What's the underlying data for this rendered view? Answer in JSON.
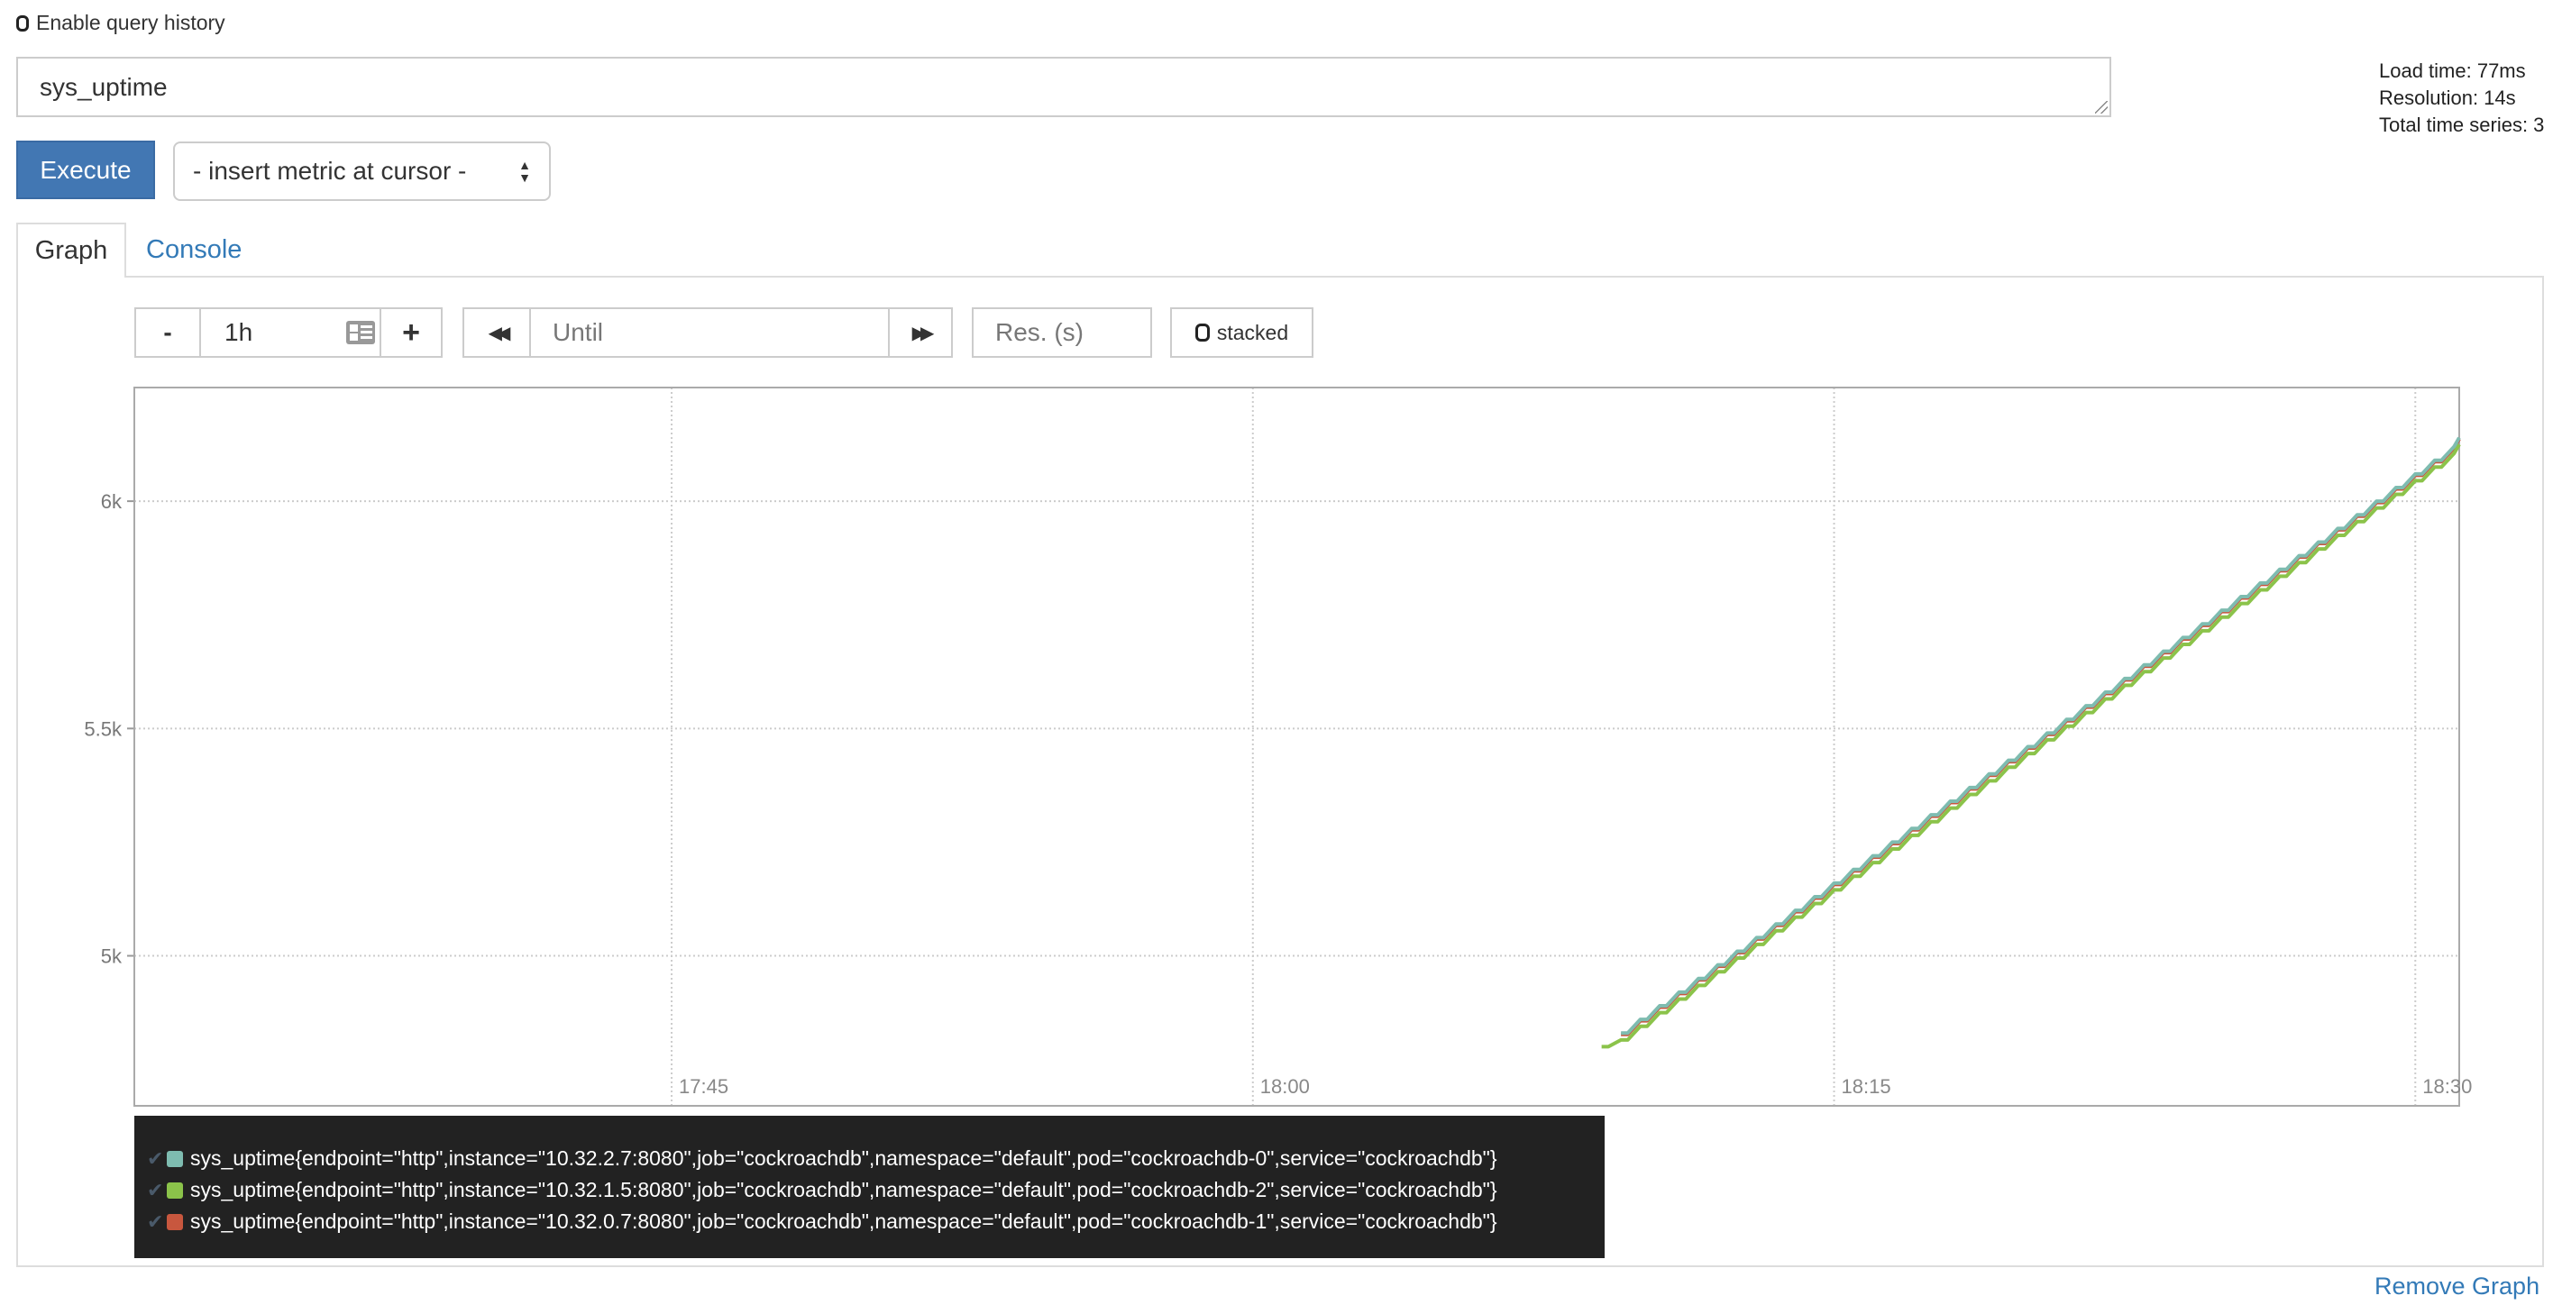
{
  "query_history": {
    "label": "Enable query history",
    "checked": false
  },
  "query": {
    "value": "sys_uptime"
  },
  "execute_label": "Execute",
  "metric_select": {
    "selected": "- insert metric at cursor -"
  },
  "stats": {
    "load_time": "Load time: 77ms",
    "resolution": "Resolution: 14s",
    "total_series": "Total time series: 3"
  },
  "tabs": [
    {
      "label": "Graph",
      "active": true
    },
    {
      "label": "Console",
      "active": false
    }
  ],
  "controls": {
    "range_minus": "-",
    "range_value": "1h",
    "range_plus": "+",
    "until_placeholder": "Until",
    "res_placeholder": "Res. (s)",
    "stacked_label": "stacked",
    "stacked": false
  },
  "legend": [
    {
      "label": "sys_uptime{endpoint=\"http\",instance=\"10.32.2.7:8080\",job=\"cockroachdb\",namespace=\"default\",pod=\"cockroachdb-0\",service=\"cockroachdb\"}",
      "color": "#7ebcb0"
    },
    {
      "label": "sys_uptime{endpoint=\"http\",instance=\"10.32.1.5:8080\",job=\"cockroachdb\",namespace=\"default\",pod=\"cockroachdb-2\",service=\"cockroachdb\"}",
      "color": "#8bc34a"
    },
    {
      "label": "sys_uptime{endpoint=\"http\",instance=\"10.32.0.7:8080\",job=\"cockroachdb\",namespace=\"default\",pod=\"cockroachdb-1\",service=\"cockroachdb\"}",
      "color": "#c8573e"
    }
  ],
  "remove_graph": "Remove Graph",
  "chart_data": {
    "type": "line",
    "xlim": [
      "17:31",
      "18:31"
    ],
    "ylim": [
      4670,
      6250
    ],
    "grid": true,
    "x_ticks": [
      "17:45",
      "18:00",
      "18:15",
      "18:30"
    ],
    "y_ticks": [
      {
        "value": 5000,
        "label": "5k"
      },
      {
        "value": 5500,
        "label": "5.5k"
      },
      {
        "value": 6000,
        "label": "6k"
      }
    ],
    "legend_position": "bottom",
    "x": [
      "18:09:00",
      "18:09:30",
      "18:10:00",
      "18:10:30",
      "18:11:00",
      "18:11:30",
      "18:12:00",
      "18:12:30",
      "18:13:00",
      "18:13:30",
      "18:14:00",
      "18:14:30",
      "18:15:00",
      "18:15:30",
      "18:16:00",
      "18:16:30",
      "18:17:00",
      "18:17:30",
      "18:18:00",
      "18:18:30",
      "18:19:00",
      "18:19:30",
      "18:20:00",
      "18:20:30",
      "18:21:00",
      "18:21:30",
      "18:22:00",
      "18:22:30",
      "18:23:00",
      "18:23:30",
      "18:24:00",
      "18:24:30",
      "18:25:00",
      "18:25:30",
      "18:26:00",
      "18:26:30",
      "18:27:00",
      "18:27:30",
      "18:28:00",
      "18:28:30",
      "18:29:00",
      "18:29:30",
      "18:30:00",
      "18:30:30",
      "18:31:00"
    ],
    "series": [
      {
        "color": "#c8573e",
        "values": [
          null,
          4827,
          4857,
          4887,
          4917,
          4947,
          4977,
          5007,
          5037,
          5067,
          5097,
          5127,
          5157,
          5187,
          5217,
          5247,
          5277,
          5307,
          5337,
          5367,
          5397,
          5427,
          5457,
          5487,
          5517,
          5547,
          5577,
          5607,
          5637,
          5667,
          5697,
          5727,
          5757,
          5787,
          5817,
          5847,
          5877,
          5907,
          5937,
          5967,
          5997,
          6027,
          6057,
          6087,
          6117
        ]
      },
      {
        "color": "#8bc34a",
        "values": [
          4800,
          4815,
          4845,
          4875,
          4905,
          4935,
          4965,
          4995,
          5025,
          5055,
          5085,
          5115,
          5145,
          5175,
          5205,
          5235,
          5265,
          5295,
          5325,
          5355,
          5385,
          5415,
          5445,
          5475,
          5505,
          5535,
          5565,
          5595,
          5625,
          5655,
          5685,
          5715,
          5745,
          5775,
          5805,
          5835,
          5865,
          5895,
          5925,
          5955,
          5985,
          6015,
          6045,
          6075,
          6105
        ]
      },
      {
        "color": "#7ebcb0",
        "values": [
          null,
          4830,
          4860,
          4890,
          4920,
          4950,
          4980,
          5010,
          5040,
          5070,
          5100,
          5130,
          5160,
          5190,
          5220,
          5250,
          5280,
          5310,
          5340,
          5370,
          5400,
          5430,
          5460,
          5490,
          5520,
          5550,
          5580,
          5610,
          5640,
          5670,
          5700,
          5730,
          5760,
          5790,
          5820,
          5850,
          5880,
          5910,
          5940,
          5970,
          6000,
          6030,
          6060,
          6090,
          6120
        ]
      }
    ]
  }
}
